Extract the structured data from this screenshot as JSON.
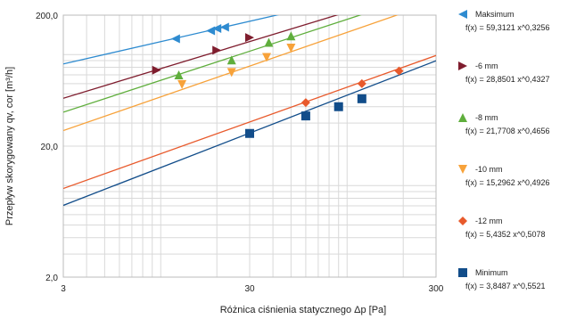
{
  "chart_data": {
    "type": "scatter",
    "xlabel": "Różnica ciśnienia statycznego Δp [Pa]",
    "ylabel": "Przepływ skorygowany qv, cor [m³/h]",
    "x_scale": "log",
    "y_scale": "log",
    "xlim": [
      3,
      300
    ],
    "ylim": [
      2,
      200
    ],
    "x_ticks": [
      3,
      30,
      300
    ],
    "x_tick_labels": [
      "3",
      "30",
      "300"
    ],
    "y_ticks": [
      2,
      20,
      200
    ],
    "y_tick_labels": [
      "2,0",
      "20,0",
      "200,0"
    ],
    "grid": true,
    "legend_position": "right",
    "series": [
      {
        "name": "Maksimum",
        "equation": "f(x) = 59,3121 x^0,3256",
        "coef": 59.3121,
        "exp": 0.3256,
        "color": "#2e8bd0",
        "marker": "triangle-left",
        "x": [
          12,
          18.5,
          20,
          22
        ],
        "y": [
          132,
          152,
          158,
          162
        ]
      },
      {
        "name": "-6 mm",
        "equation": "f(x) = 28,8501 x^0,4327",
        "coef": 28.8501,
        "exp": 0.4327,
        "color": "#7f1d2e",
        "marker": "triangle-right",
        "x": [
          9.5,
          20,
          30
        ],
        "y": [
          76,
          108,
          135
        ]
      },
      {
        "name": "-8 mm",
        "equation": "f(x) = 21,7708 x^0,4656",
        "coef": 21.7708,
        "exp": 0.4656,
        "color": "#5fae3c",
        "marker": "triangle-up",
        "x": [
          12.5,
          24,
          38,
          50
        ],
        "y": [
          70,
          91,
          124,
          139
        ]
      },
      {
        "name": "-10 mm",
        "equation": "f(x) = 15,2962 x^0,4926",
        "coef": 15.2962,
        "exp": 0.4926,
        "color": "#f7a23a",
        "marker": "triangle-down",
        "x": [
          13,
          24,
          37,
          50
        ],
        "y": [
          59,
          73,
          95,
          112
        ]
      },
      {
        "name": "-12 mm",
        "equation": "f(x) = 5,4352 x^0,5078",
        "coef": 5.4352,
        "exp": 0.5078,
        "color": "#e85a2c",
        "marker": "diamond",
        "x": [
          60,
          120,
          190
        ],
        "y": [
          43,
          60,
          75
        ]
      },
      {
        "name": "Minimum",
        "equation": "f(x) = 3,8487 x^0,5521",
        "coef": 3.8487,
        "exp": 0.5521,
        "color": "#124d8a",
        "marker": "square",
        "x": [
          30,
          60,
          90,
          120
        ],
        "y": [
          25,
          34,
          40,
          46
        ]
      }
    ]
  }
}
